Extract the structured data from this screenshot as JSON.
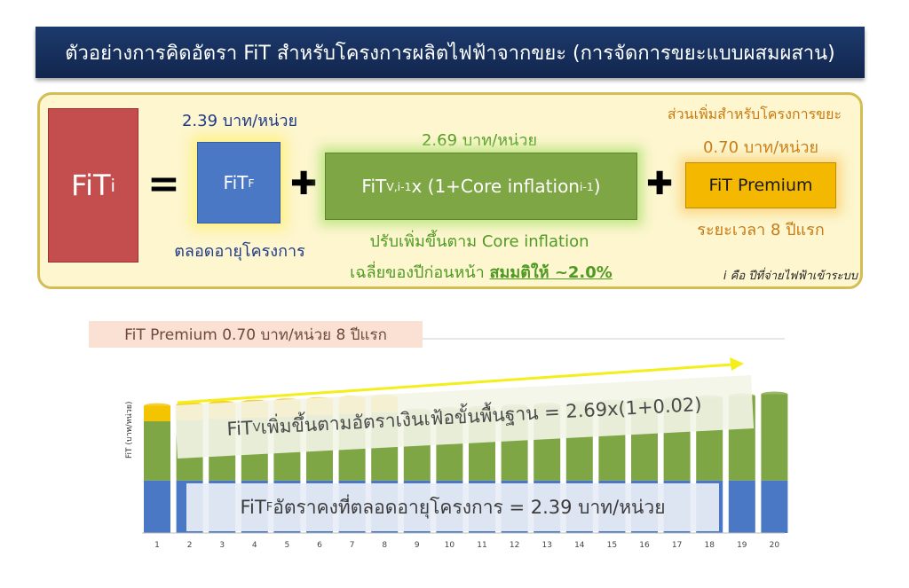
{
  "title": "ตัวอย่างการคิดอัตรา FiT สำหรับโครงการผลิตไฟฟ้าจากขยะ (การจัดการขยะแบบผสมผสาน)",
  "formula": {
    "fit_i": {
      "main": "FiT",
      "sub": "i"
    },
    "equals": "=",
    "plus": "✚",
    "fit_f": {
      "main": "FiT",
      "sub": "F",
      "rate_label": "2.39 บาท/หน่วย",
      "note": "ตลอดอายุโครงการ"
    },
    "fit_v": {
      "main": "FiT",
      "sub": "V,i-1",
      "expr": " x (1+Core inflation",
      "expr_sub": "i-1",
      "expr_end": ")",
      "rate_label": "2.69 บาท/หน่วย",
      "note1": "ปรับเพิ่มขึ้นตาม Core inflation",
      "note2_prefix": "เฉลี่ยของปีก่อนหน้า ",
      "note2_emph": "สมมติให้ ~2.0%"
    },
    "premium": {
      "label": "FiT Premium",
      "header": "ส่วนเพิ่มสำหรับโครงการขยะ",
      "rate_label": "0.70 บาท/หน่วย",
      "note": "ระยะเวลา 8 ปีแรก"
    },
    "footnote": "i คือ ปีที่จ่ายไฟฟ้าเข้าระบบ"
  },
  "chart_title": "FiT Premium 0.70 บาท/หน่วย 8 ปีแรก",
  "annotations": {
    "fit_v": {
      "main": "FiT",
      "sub": "V",
      "text": " เพิ่มขึ้นตามอัตราเงินเฟ้อขั้นพื้นฐาน = 2.69x(1+0.02)"
    },
    "fit_f": {
      "main": "FiT",
      "sub": "F",
      "text": " อัตราคงที่ตลอดอายุโครงการ = 2.39 บาท/หน่วย"
    }
  },
  "colors": {
    "fit_f": "#4a78c4",
    "fit_v": "#7fa645",
    "premium": "#f4c400",
    "fit_i": "#c44d4d",
    "arrow": "#f4ee1a"
  },
  "chart_data": {
    "type": "bar",
    "stacked": true,
    "categories": [
      "1",
      "2",
      "3",
      "4",
      "5",
      "6",
      "7",
      "8",
      "9",
      "10",
      "11",
      "12",
      "13",
      "14",
      "15",
      "16",
      "17",
      "18",
      "19",
      "20"
    ],
    "series": [
      {
        "name": "FiTF",
        "values": [
          2.39,
          2.39,
          2.39,
          2.39,
          2.39,
          2.39,
          2.39,
          2.39,
          2.39,
          2.39,
          2.39,
          2.39,
          2.39,
          2.39,
          2.39,
          2.39,
          2.39,
          2.39,
          2.39,
          2.39
        ]
      },
      {
        "name": "FiTV",
        "values": [
          2.69,
          2.74,
          2.8,
          2.85,
          2.91,
          2.97,
          3.03,
          3.09,
          3.15,
          3.21,
          3.28,
          3.34,
          3.41,
          3.48,
          3.55,
          3.62,
          3.69,
          3.76,
          3.84,
          3.92
        ]
      },
      {
        "name": "FiT Premium",
        "values": [
          0.7,
          0.7,
          0.7,
          0.7,
          0.7,
          0.7,
          0.7,
          0.7,
          0,
          0,
          0,
          0,
          0,
          0,
          0,
          0,
          0,
          0,
          0,
          0
        ]
      }
    ],
    "xlabel": "",
    "ylabel": "FiT (บาท/หน่วย)",
    "grid": false
  }
}
